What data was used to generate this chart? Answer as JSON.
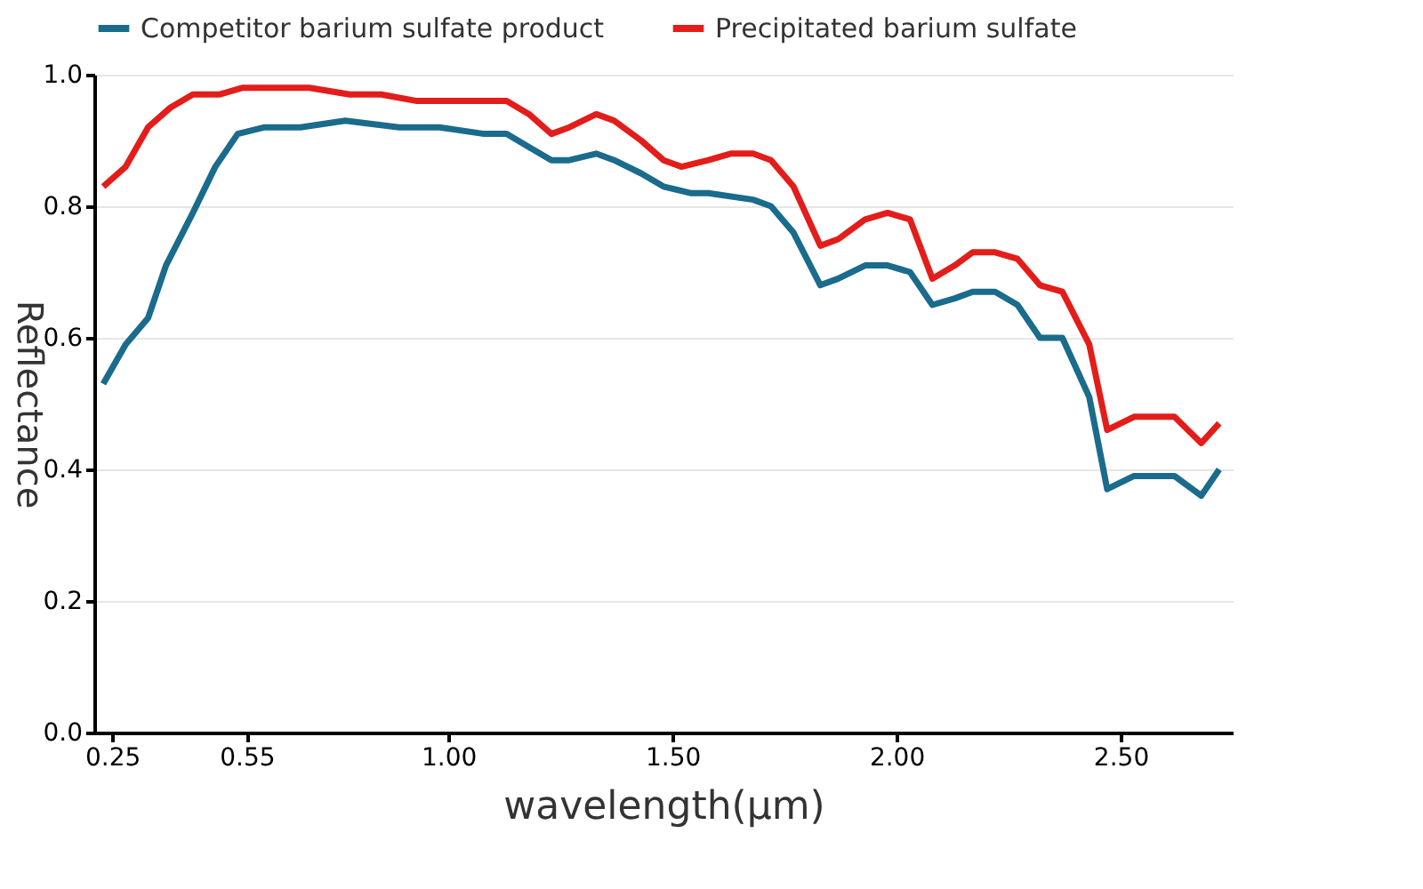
{
  "chart_data": {
    "type": "line",
    "xlabel": "wavelength(μm)",
    "ylabel": "Reflectance",
    "xlim": [
      0.21,
      2.75
    ],
    "xticks": [
      0.25,
      0.55,
      {
        "value": 1.0,
        "label": "1.00"
      },
      {
        "value": 1.5,
        "label": "1.50"
      },
      {
        "value": 2.0,
        "label": "2.00"
      },
      {
        "value": 2.5,
        "label": "2.50"
      }
    ],
    "ylim": [
      0,
      1
    ],
    "yticks": [
      {
        "value": 0,
        "label": "0.0"
      },
      0.2,
      0.4,
      0.6,
      0.8,
      {
        "value": 1,
        "label": "1.0"
      }
    ],
    "grid": "y",
    "legend": "top",
    "marker": "none",
    "line_style": "solid",
    "series": [
      {
        "name": "Competitor barium sulfate product",
        "color": "#1a6b8c",
        "x": [
          0.23,
          0.28,
          0.33,
          0.37,
          0.43,
          0.48,
          0.53,
          0.59,
          0.67,
          0.77,
          0.89,
          0.98,
          1.08,
          1.13,
          1.18,
          1.23,
          1.27,
          1.33,
          1.37,
          1.43,
          1.48,
          1.54,
          1.58,
          1.68,
          1.72,
          1.77,
          1.83,
          1.87,
          1.93,
          1.98,
          2.03,
          2.08,
          2.13,
          2.17,
          2.22,
          2.27,
          2.32,
          2.37,
          2.43,
          2.47,
          2.53,
          2.62,
          2.68,
          2.72
        ],
        "values": [
          0.53,
          0.59,
          0.63,
          0.71,
          0.79,
          0.86,
          0.91,
          0.92,
          0.92,
          0.93,
          0.92,
          0.92,
          0.91,
          0.91,
          0.89,
          0.87,
          0.87,
          0.88,
          0.87,
          0.85,
          0.83,
          0.82,
          0.82,
          0.81,
          0.8,
          0.76,
          0.68,
          0.69,
          0.71,
          0.71,
          0.7,
          0.65,
          0.66,
          0.67,
          0.67,
          0.65,
          0.6,
          0.6,
          0.51,
          0.37,
          0.39,
          0.39,
          0.36,
          0.4
        ]
      },
      {
        "name": "Precipitated barium sulfate",
        "color": "#e31d1a",
        "x": [
          0.23,
          0.28,
          0.33,
          0.38,
          0.43,
          0.49,
          0.54,
          0.69,
          0.78,
          0.85,
          0.93,
          1.0,
          1.08,
          1.13,
          1.18,
          1.23,
          1.27,
          1.33,
          1.37,
          1.43,
          1.48,
          1.52,
          1.58,
          1.63,
          1.68,
          1.72,
          1.77,
          1.83,
          1.87,
          1.93,
          1.98,
          2.03,
          2.08,
          2.13,
          2.17,
          2.22,
          2.27,
          2.32,
          2.37,
          2.43,
          2.47,
          2.53,
          2.57,
          2.62,
          2.68,
          2.72
        ],
        "values": [
          0.83,
          0.86,
          0.92,
          0.95,
          0.97,
          0.97,
          0.98,
          0.98,
          0.97,
          0.97,
          0.96,
          0.96,
          0.96,
          0.96,
          0.94,
          0.91,
          0.92,
          0.94,
          0.93,
          0.9,
          0.87,
          0.86,
          0.87,
          0.88,
          0.88,
          0.87,
          0.83,
          0.74,
          0.75,
          0.78,
          0.79,
          0.78,
          0.69,
          0.71,
          0.73,
          0.73,
          0.72,
          0.68,
          0.67,
          0.59,
          0.46,
          0.48,
          0.48,
          0.48,
          0.44,
          0.47
        ]
      }
    ]
  }
}
